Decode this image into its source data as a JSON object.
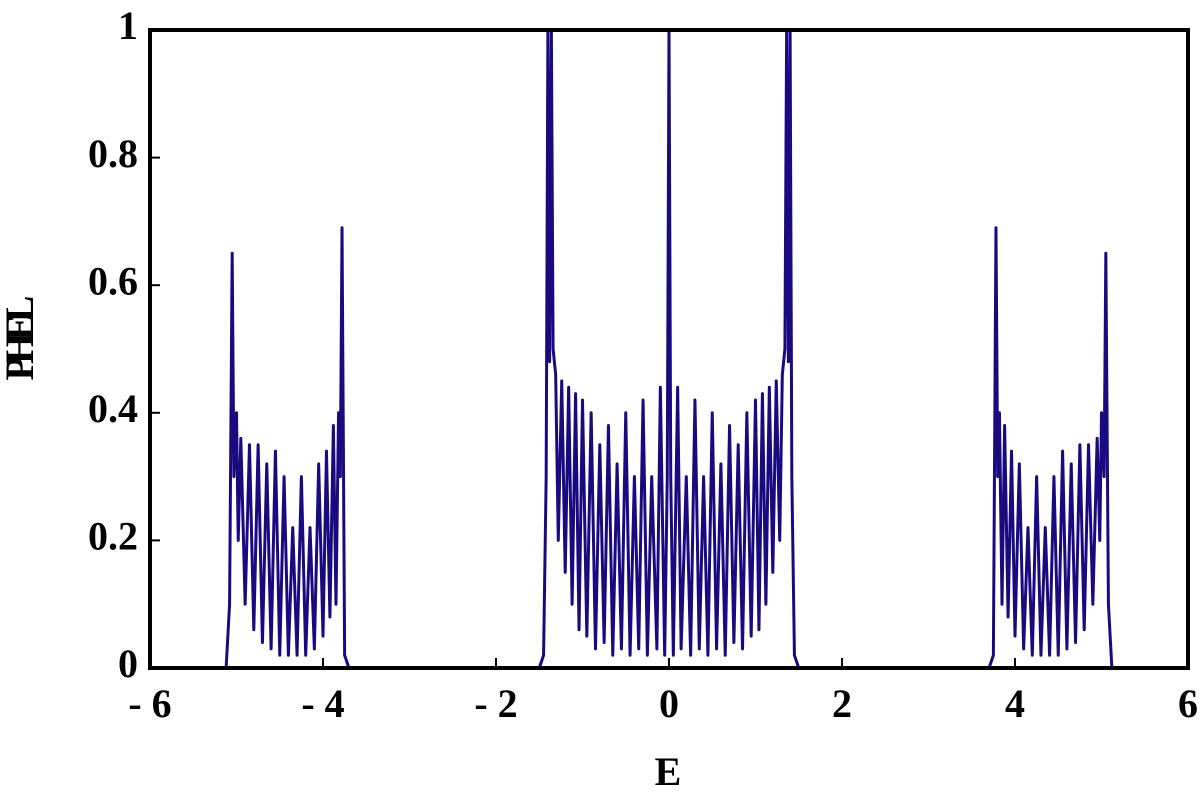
{
  "chart_data": {
    "type": "line",
    "x_label": "E",
    "y_label": "PHEL",
    "xlim": [
      -6,
      6
    ],
    "ylim": [
      0,
      1
    ],
    "xticks": [
      {
        "value": -6,
        "label": "- 6"
      },
      {
        "value": -4,
        "label": "- 4"
      },
      {
        "value": -2,
        "label": "- 2"
      },
      0,
      2,
      4,
      6
    ],
    "yticks": [
      0,
      0.2,
      0.4,
      0.6,
      0.8,
      1
    ],
    "series": [
      {
        "color": "#1a0a80",
        "x": [
          -6,
          -5.12,
          -5.08,
          -5.05,
          -5.03,
          -5.0,
          -4.98,
          -4.95,
          -4.9,
          -4.85,
          -4.8,
          -4.75,
          -4.7,
          -4.65,
          -4.6,
          -4.55,
          -4.5,
          -4.45,
          -4.4,
          -4.35,
          -4.3,
          -4.25,
          -4.2,
          -4.15,
          -4.1,
          -4.05,
          -4.0,
          -3.96,
          -3.92,
          -3.88,
          -3.85,
          -3.82,
          -3.8,
          -3.78,
          -3.75,
          -3.7,
          -1.5,
          -1.45,
          -1.42,
          -1.4,
          -1.38,
          -1.36,
          -1.34,
          -1.31,
          -1.28,
          -1.24,
          -1.2,
          -1.16,
          -1.12,
          -1.08,
          -1.04,
          -1.0,
          -0.95,
          -0.9,
          -0.85,
          -0.8,
          -0.75,
          -0.7,
          -0.65,
          -0.6,
          -0.55,
          -0.5,
          -0.45,
          -0.4,
          -0.35,
          -0.3,
          -0.25,
          -0.2,
          -0.14,
          -0.1,
          -0.05,
          -0.02,
          0,
          0.02,
          0.05,
          0.1,
          0.14,
          0.2,
          0.25,
          0.3,
          0.35,
          0.4,
          0.45,
          0.5,
          0.55,
          0.6,
          0.65,
          0.7,
          0.75,
          0.8,
          0.85,
          0.9,
          0.95,
          1.0,
          1.04,
          1.08,
          1.12,
          1.16,
          1.2,
          1.24,
          1.28,
          1.31,
          1.34,
          1.36,
          1.38,
          1.4,
          1.42,
          1.45,
          1.5,
          3.7,
          3.75,
          3.78,
          3.8,
          3.82,
          3.85,
          3.88,
          3.92,
          3.96,
          4.0,
          4.05,
          4.1,
          4.15,
          4.2,
          4.25,
          4.3,
          4.35,
          4.4,
          4.45,
          4.5,
          4.55,
          4.6,
          4.65,
          4.7,
          4.75,
          4.8,
          4.85,
          4.9,
          4.95,
          4.98,
          5.0,
          5.03,
          5.05,
          5.08,
          5.12,
          6
        ],
        "values": [
          0,
          0,
          0.1,
          0.65,
          0.3,
          0.4,
          0.2,
          0.36,
          0.1,
          0.35,
          0.06,
          0.35,
          0.04,
          0.32,
          0.03,
          0.34,
          0.02,
          0.3,
          0.02,
          0.22,
          0.02,
          0.3,
          0.02,
          0.22,
          0.03,
          0.32,
          0.05,
          0.34,
          0.08,
          0.38,
          0.1,
          0.4,
          0.3,
          0.69,
          0.02,
          0,
          0,
          0.02,
          0.3,
          1.0,
          0.48,
          1.0,
          0.5,
          0.46,
          0.2,
          0.45,
          0.15,
          0.44,
          0.1,
          0.43,
          0.06,
          0.42,
          0.05,
          0.4,
          0.03,
          0.35,
          0.04,
          0.38,
          0.02,
          0.32,
          0.03,
          0.4,
          0.02,
          0.3,
          0.03,
          0.42,
          0.02,
          0.3,
          0.03,
          0.44,
          0.02,
          0.3,
          1.0,
          0.3,
          0.02,
          0.44,
          0.03,
          0.3,
          0.02,
          0.42,
          0.03,
          0.3,
          0.02,
          0.4,
          0.03,
          0.32,
          0.02,
          0.38,
          0.04,
          0.35,
          0.03,
          0.4,
          0.05,
          0.42,
          0.06,
          0.43,
          0.1,
          0.44,
          0.15,
          0.45,
          0.2,
          0.46,
          0.5,
          1.0,
          0.48,
          1.0,
          0.3,
          0.02,
          0,
          0,
          0.02,
          0.69,
          0.3,
          0.4,
          0.1,
          0.38,
          0.08,
          0.34,
          0.05,
          0.32,
          0.03,
          0.22,
          0.02,
          0.3,
          0.02,
          0.22,
          0.02,
          0.3,
          0.02,
          0.34,
          0.03,
          0.32,
          0.04,
          0.35,
          0.06,
          0.35,
          0.1,
          0.36,
          0.2,
          0.4,
          0.3,
          0.65,
          0.1,
          0,
          0
        ]
      }
    ]
  }
}
